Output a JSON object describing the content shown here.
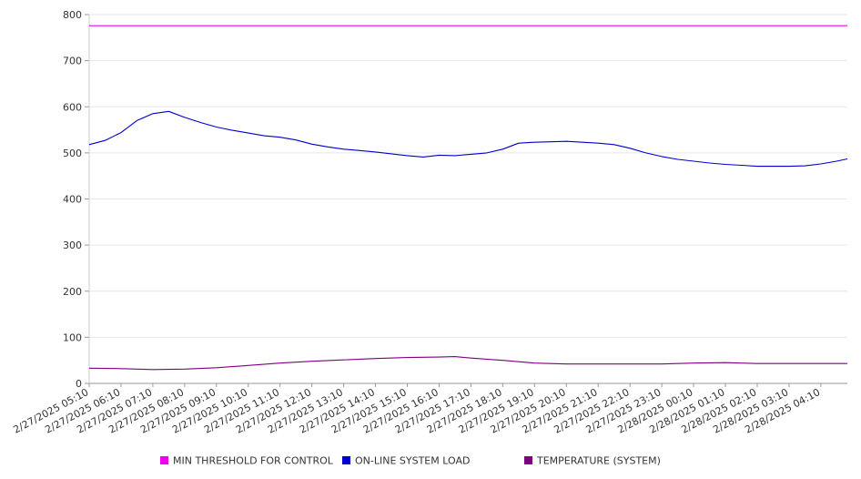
{
  "chart_data": {
    "type": "line",
    "ylim": [
      0,
      800
    ],
    "yticks": [
      0,
      100,
      200,
      300,
      400,
      500,
      600,
      700,
      800
    ],
    "xlim": [
      "2/27/2025 05:10",
      "2/28/2025 05:00"
    ],
    "x_tick_labels": [
      "2/27/2025 05:10",
      "2/27/2025 06:10",
      "2/27/2025 07:10",
      "2/27/2025 08:10",
      "2/27/2025 09:10",
      "2/27/2025 10:10",
      "2/27/2025 11:10",
      "2/27/2025 12:10",
      "2/27/2025 13:10",
      "2/27/2025 14:10",
      "2/27/2025 15:10",
      "2/27/2025 16:10",
      "2/27/2025 17:10",
      "2/27/2025 18:10",
      "2/27/2025 19:10",
      "2/27/2025 20:10",
      "2/27/2025 21:10",
      "2/27/2025 22:10",
      "2/27/2025 23:10",
      "2/28/2025 00:10",
      "2/28/2025 01:10",
      "2/28/2025 02:10",
      "2/28/2025 03:10",
      "2/28/2025 04:10"
    ],
    "grid": "horizontal",
    "legend_position": "bottom",
    "series": [
      {
        "name": "MIN THRESHOLD FOR CONTROL",
        "color": "#ee00ee",
        "points": [
          [
            "2/27/2025 05:10",
            776
          ],
          [
            "2/28/2025 05:00",
            776
          ]
        ]
      },
      {
        "name": "ON-LINE SYSTEM LOAD",
        "color": "#0000cc",
        "points": [
          [
            "2/27/2025 05:10",
            518
          ],
          [
            "2/27/2025 05:40",
            527
          ],
          [
            "2/27/2025 06:10",
            544
          ],
          [
            "2/27/2025 06:40",
            570
          ],
          [
            "2/27/2025 07:10",
            585
          ],
          [
            "2/27/2025 07:40",
            590
          ],
          [
            "2/27/2025 08:10",
            577
          ],
          [
            "2/27/2025 08:40",
            566
          ],
          [
            "2/27/2025 09:10",
            556
          ],
          [
            "2/27/2025 09:40",
            549
          ],
          [
            "2/27/2025 10:10",
            543
          ],
          [
            "2/27/2025 10:40",
            537
          ],
          [
            "2/27/2025 11:10",
            534
          ],
          [
            "2/27/2025 11:40",
            528
          ],
          [
            "2/27/2025 12:10",
            519
          ],
          [
            "2/27/2025 12:40",
            513
          ],
          [
            "2/27/2025 13:10",
            508
          ],
          [
            "2/27/2025 13:40",
            505
          ],
          [
            "2/27/2025 14:10",
            502
          ],
          [
            "2/27/2025 14:40",
            498
          ],
          [
            "2/27/2025 15:10",
            494
          ],
          [
            "2/27/2025 15:40",
            491
          ],
          [
            "2/27/2025 16:10",
            495
          ],
          [
            "2/27/2025 16:40",
            494
          ],
          [
            "2/27/2025 17:10",
            497
          ],
          [
            "2/27/2025 17:40",
            500
          ],
          [
            "2/27/2025 18:10",
            508
          ],
          [
            "2/27/2025 18:40",
            521
          ],
          [
            "2/27/2025 19:10",
            523
          ],
          [
            "2/27/2025 19:40",
            524
          ],
          [
            "2/27/2025 20:10",
            525
          ],
          [
            "2/27/2025 20:40",
            523
          ],
          [
            "2/27/2025 21:10",
            521
          ],
          [
            "2/27/2025 21:40",
            518
          ],
          [
            "2/27/2025 22:10",
            510
          ],
          [
            "2/27/2025 22:40",
            500
          ],
          [
            "2/27/2025 23:10",
            492
          ],
          [
            "2/27/2025 23:40",
            486
          ],
          [
            "2/28/2025 00:10",
            482
          ],
          [
            "2/28/2025 00:40",
            478
          ],
          [
            "2/28/2025 01:10",
            475
          ],
          [
            "2/28/2025 01:40",
            473
          ],
          [
            "2/28/2025 02:10",
            471
          ],
          [
            "2/28/2025 02:40",
            471
          ],
          [
            "2/28/2025 03:10",
            471
          ],
          [
            "2/28/2025 03:40",
            472
          ],
          [
            "2/28/2025 04:10",
            476
          ],
          [
            "2/28/2025 04:40",
            482
          ],
          [
            "2/28/2025 05:00",
            487
          ]
        ]
      },
      {
        "name": "TEMPERATURE (SYSTEM)",
        "color": "#800080",
        "points": [
          [
            "2/27/2025 05:10",
            33
          ],
          [
            "2/27/2025 06:10",
            32
          ],
          [
            "2/27/2025 07:10",
            30
          ],
          [
            "2/27/2025 08:10",
            31
          ],
          [
            "2/27/2025 09:10",
            34
          ],
          [
            "2/27/2025 10:10",
            39
          ],
          [
            "2/27/2025 11:10",
            44
          ],
          [
            "2/27/2025 12:10",
            48
          ],
          [
            "2/27/2025 13:10",
            51
          ],
          [
            "2/27/2025 14:10",
            54
          ],
          [
            "2/27/2025 15:10",
            56
          ],
          [
            "2/27/2025 16:10",
            57
          ],
          [
            "2/27/2025 16:40",
            58
          ],
          [
            "2/27/2025 17:10",
            55
          ],
          [
            "2/27/2025 18:10",
            50
          ],
          [
            "2/27/2025 19:10",
            44
          ],
          [
            "2/27/2025 20:10",
            42
          ],
          [
            "2/27/2025 21:10",
            42
          ],
          [
            "2/27/2025 22:10",
            42
          ],
          [
            "2/27/2025 23:10",
            42
          ],
          [
            "2/28/2025 00:10",
            44
          ],
          [
            "2/28/2025 01:10",
            45
          ],
          [
            "2/28/2025 02:10",
            43
          ],
          [
            "2/28/2025 03:10",
            43
          ],
          [
            "2/28/2025 04:10",
            43
          ],
          [
            "2/28/2025 05:00",
            43
          ]
        ]
      }
    ]
  }
}
